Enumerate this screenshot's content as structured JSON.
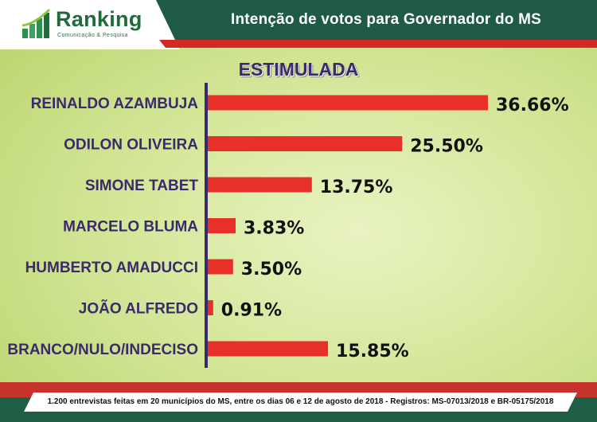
{
  "header": {
    "title": "Intenção de votos para Governador do MS",
    "logo_name": "Ranking",
    "logo_sub": "Comunicação & Pesquisa"
  },
  "colors": {
    "bar": "#e8302b",
    "axis": "#3b2a6b",
    "label": "#3b2a6b",
    "value": "#111111"
  },
  "chart_data": {
    "type": "bar",
    "orientation": "horizontal",
    "title": "ESTIMULADA",
    "categories": [
      "REINALDO AZAMBUJA",
      "ODILON OLIVEIRA",
      "SIMONE TABET",
      "MARCELO BLUMA",
      "HUMBERTO AMADUCCI",
      "JOÃO ALFREDO",
      "BRANCO/NULO/INDECISO"
    ],
    "values": [
      36.66,
      25.5,
      13.75,
      3.83,
      3.5,
      0.91,
      15.85
    ],
    "value_labels": [
      "36.66%",
      "25.50%",
      "13.75%",
      "3.83%",
      "3.50%",
      "0.91%",
      "15.85%"
    ],
    "xlabel": "",
    "ylabel": "",
    "xlim": [
      0,
      40
    ],
    "grid": false,
    "legend": "none"
  },
  "footer": {
    "note": "1.200 entrevistas feitas em 20 municípios do MS, entre os dias 06 e 12 de agosto de 2018 - Registros: MS-07013/2018 e BR-05175/2018"
  }
}
